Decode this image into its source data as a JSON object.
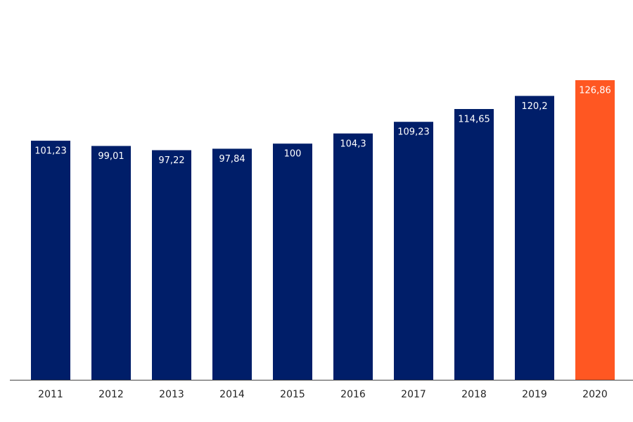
{
  "chart_data": {
    "type": "bar",
    "categories": [
      "2011",
      "2012",
      "2013",
      "2014",
      "2015",
      "2016",
      "2017",
      "2018",
      "2019",
      "2020"
    ],
    "values": [
      101.23,
      99.01,
      97.22,
      97.84,
      100,
      104.3,
      109.23,
      114.65,
      120.2,
      126.86
    ],
    "value_labels": [
      "101,23",
      "99,01",
      "97,22",
      "97,84",
      "100",
      "104,3",
      "109,23",
      "114,65",
      "120,2",
      "126,86"
    ],
    "colors": [
      "#001e69",
      "#001e69",
      "#001e69",
      "#001e69",
      "#001e69",
      "#001e69",
      "#001e69",
      "#001e69",
      "#001e69",
      "#ff5722"
    ]
  }
}
